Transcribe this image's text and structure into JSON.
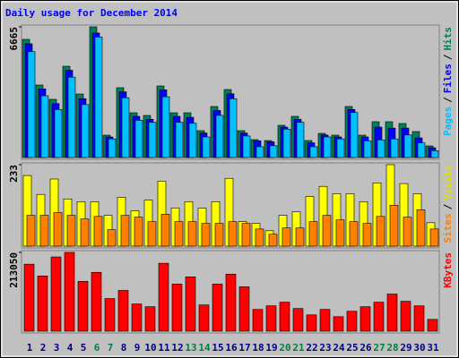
{
  "title": "Daily usage for December 2014",
  "chart_data": [
    {
      "type": "bar",
      "legend_separator": "/",
      "ylim": [
        0,
        6665
      ],
      "yticks": [
        6665
      ],
      "series": [
        {
          "name": "Hits",
          "color": "#00805c",
          "values": [
            6026,
            3698,
            2967,
            4656,
            3241,
            6665,
            1141,
            3561,
            2283,
            2146,
            3652,
            2283,
            2283,
            1370,
            2602,
            3469,
            1370,
            913,
            867,
            1643,
            2100,
            867,
            1233,
            1141,
            2602,
            1141,
            1826,
            1826,
            1735,
            1324,
            593
          ]
        },
        {
          "name": "Files",
          "color": "#0000ff",
          "values": [
            5800,
            3500,
            2750,
            4450,
            3000,
            6350,
            1050,
            3350,
            2100,
            1950,
            3450,
            2100,
            2050,
            1250,
            2400,
            3250,
            1250,
            850,
            800,
            1550,
            1950,
            750,
            1150,
            1050,
            2450,
            1050,
            1550,
            1500,
            1500,
            1000,
            500
          ]
        },
        {
          "name": "Pages",
          "color": "#00c0ff",
          "values": [
            5400,
            3150,
            2450,
            4100,
            2700,
            6150,
            950,
            3050,
            1900,
            1800,
            3100,
            1800,
            1750,
            1050,
            2150,
            3000,
            1100,
            550,
            600,
            1450,
            1800,
            550,
            1050,
            950,
            2300,
            850,
            900,
            950,
            1150,
            750,
            350
          ]
        }
      ]
    },
    {
      "type": "bar",
      "legend_separator": "/",
      "ylim": [
        0,
        233
      ],
      "yticks": [
        233
      ],
      "series": [
        {
          "name": "Visits",
          "color": "#ffff00",
          "values": [
            202,
            148,
            192,
            135,
            127,
            127,
            88,
            140,
            101,
            132,
            186,
            109,
            127,
            109,
            127,
            194,
            70,
            65,
            44,
            88,
            98,
            142,
            171,
            150,
            150,
            127,
            181,
            233,
            179,
            150,
            67
          ]
        },
        {
          "name": "Sites",
          "color": "#ff8000",
          "values": [
            88,
            88,
            96,
            88,
            78,
            85,
            47,
            88,
            83,
            70,
            91,
            70,
            70,
            65,
            65,
            70,
            65,
            49,
            34,
            52,
            52,
            70,
            88,
            75,
            70,
            65,
            85,
            117,
            83,
            104,
            49
          ]
        }
      ]
    },
    {
      "type": "bar",
      "ylim": [
        0,
        213050
      ],
      "yticks": [
        213050
      ],
      "categories": [
        "1",
        "2",
        "3",
        "4",
        "5",
        "6",
        "7",
        "8",
        "9",
        "10",
        "11",
        "12",
        "13",
        "14",
        "15",
        "16",
        "17",
        "18",
        "19",
        "20",
        "21",
        "22",
        "23",
        "24",
        "25",
        "26",
        "27",
        "28",
        "29",
        "30",
        "31"
      ],
      "category_colors": [
        "#000080",
        "#000080",
        "#000080",
        "#000080",
        "#000080",
        "#008040",
        "#008040",
        "#000080",
        "#000080",
        "#000080",
        "#000080",
        "#000080",
        "#008040",
        "#008040",
        "#000080",
        "#000080",
        "#000080",
        "#000080",
        "#000080",
        "#008040",
        "#008040",
        "#000080",
        "#000080",
        "#000080",
        "#000080",
        "#000080",
        "#008040",
        "#008040",
        "#000080",
        "#000080",
        "#000080"
      ],
      "series": [
        {
          "name": "KBytes",
          "color": "#ff0000",
          "values": [
            181226,
            149389,
            200818,
            213050,
            134695,
            159185,
            88164,
            110205,
            73470,
            66123,
            183675,
            127348,
            146940,
            71021,
            127348,
            154287,
            120001,
            58776,
            68572,
            78368,
            61225,
            44082,
            58776,
            39184,
            53878,
            66123,
            78368,
            100409,
            80817,
            68572,
            31837
          ]
        }
      ]
    }
  ]
}
